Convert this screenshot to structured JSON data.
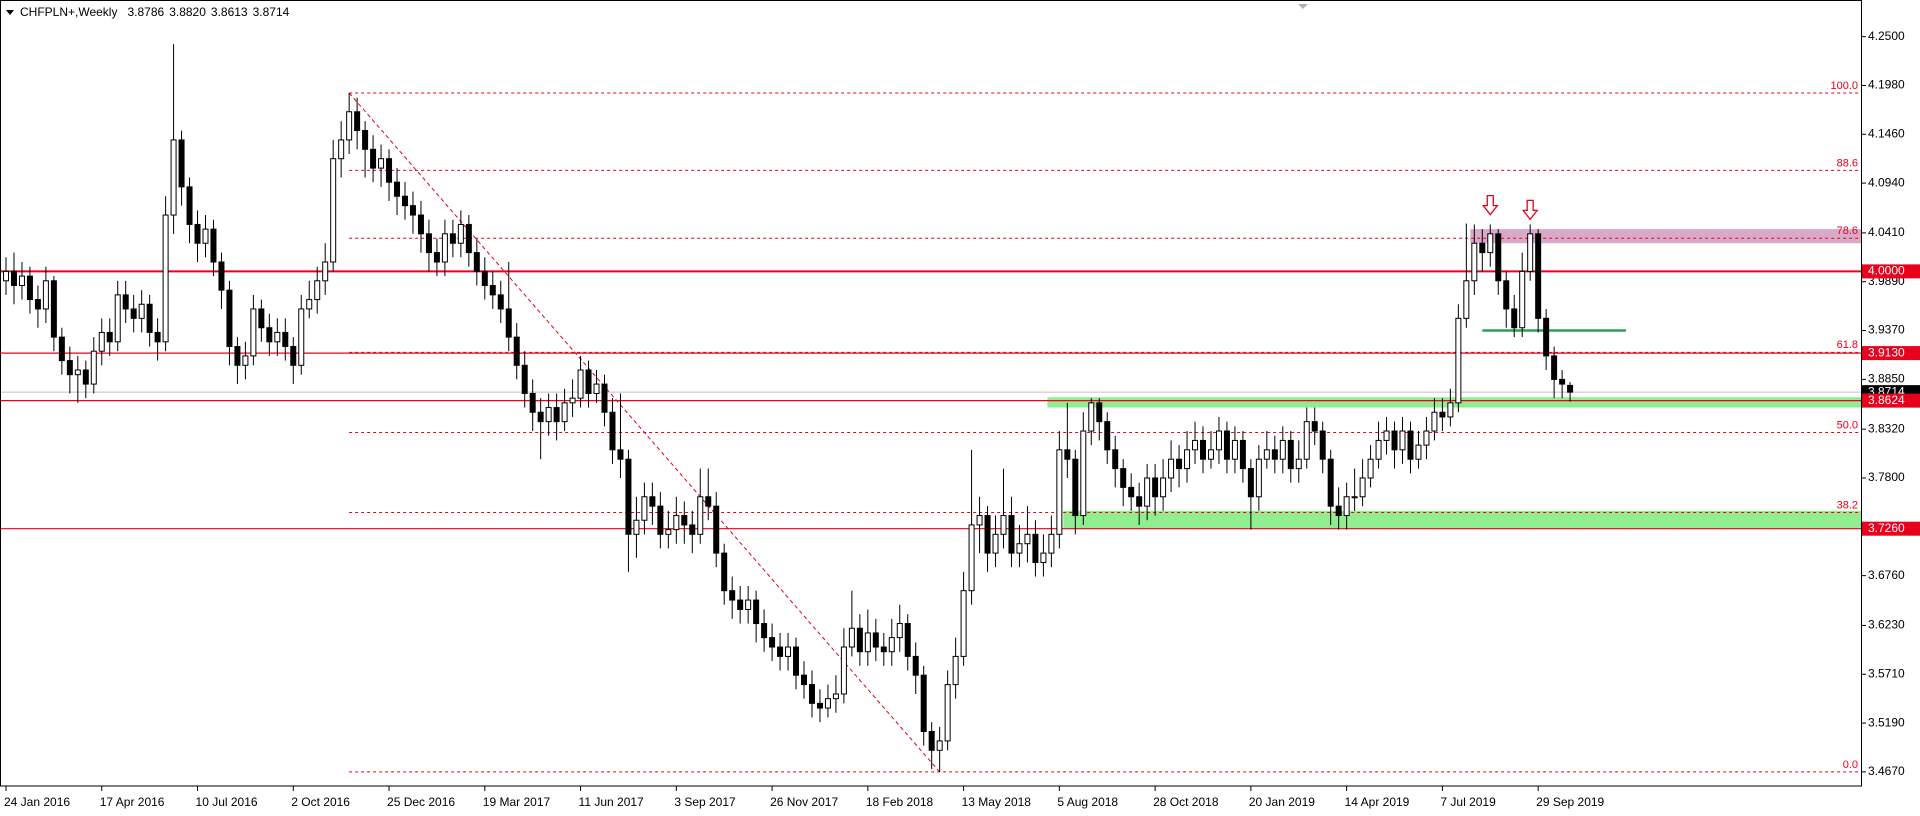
{
  "chart_data": {
    "type": "candlestick",
    "title": "CHFPLN+,Weekly",
    "quote_labels": [
      "3.8786",
      "3.8820",
      "3.8613",
      "3.8714"
    ],
    "categories": [
      "24 Jan 2016",
      null,
      null,
      null,
      null,
      null,
      null,
      null,
      null,
      null,
      null,
      null,
      "17 Apr 2016",
      null,
      null,
      null,
      null,
      null,
      null,
      null,
      null,
      null,
      null,
      null,
      "10 Jul 2016",
      null,
      null,
      null,
      null,
      null,
      null,
      null,
      null,
      null,
      null,
      null,
      "2 Oct 2016",
      null,
      null,
      null,
      null,
      null,
      null,
      null,
      null,
      null,
      null,
      null,
      "25 Dec 2016",
      null,
      null,
      null,
      null,
      null,
      null,
      null,
      null,
      null,
      null,
      null,
      "19 Mar 2017",
      null,
      null,
      null,
      null,
      null,
      null,
      null,
      null,
      null,
      null,
      null,
      "11 Jun 2017",
      null,
      null,
      null,
      null,
      null,
      null,
      null,
      null,
      null,
      null,
      null,
      "3 Sep 2017",
      null,
      null,
      null,
      null,
      null,
      null,
      null,
      null,
      null,
      null,
      null,
      "26 Nov 2017",
      null,
      null,
      null,
      null,
      null,
      null,
      null,
      null,
      null,
      null,
      null,
      "18 Feb 2018",
      null,
      null,
      null,
      null,
      null,
      null,
      null,
      null,
      null,
      null,
      null,
      "13 May 2018",
      null,
      null,
      null,
      null,
      null,
      null,
      null,
      null,
      null,
      null,
      null,
      "5 Aug 2018",
      null,
      null,
      null,
      null,
      null,
      null,
      null,
      null,
      null,
      null,
      null,
      "28 Oct 2018",
      null,
      null,
      null,
      null,
      null,
      null,
      null,
      null,
      null,
      null,
      null,
      "20 Jan 2019",
      null,
      null,
      null,
      null,
      null,
      null,
      null,
      null,
      null,
      null,
      null,
      "14 Apr 2019",
      null,
      null,
      null,
      null,
      null,
      null,
      null,
      null,
      null,
      null,
      null,
      "7 Jul 2019",
      null,
      null,
      null,
      null,
      null,
      null,
      null,
      null,
      null,
      null,
      null,
      "29 Sep 2019",
      null,
      null,
      null,
      null
    ],
    "open": [
      3.99,
      4.0,
      3.985,
      3.995,
      3.97,
      3.96,
      3.99,
      3.93,
      3.905,
      3.89,
      3.895,
      3.88,
      3.915,
      3.935,
      3.925,
      3.975,
      3.96,
      3.95,
      3.965,
      3.935,
      3.925,
      4.06,
      4.14,
      4.09,
      4.05,
      4.03,
      4.045,
      4.01,
      3.98,
      3.92,
      3.9,
      3.91,
      3.96,
      3.94,
      3.925,
      3.935,
      3.92,
      3.9,
      3.96,
      3.97,
      3.99,
      4.01,
      4.12,
      4.14,
      4.17,
      4.15,
      4.13,
      4.11,
      4.12,
      4.095,
      4.08,
      4.07,
      4.06,
      4.04,
      4.02,
      4.01,
      4.04,
      4.03,
      4.05,
      4.02,
      4.0,
      3.985,
      3.975,
      3.96,
      3.93,
      3.9,
      3.87,
      3.85,
      3.84,
      3.855,
      3.84,
      3.86,
      3.865,
      3.895,
      3.87,
      3.88,
      3.85,
      3.81,
      3.8,
      3.72,
      3.735,
      3.76,
      3.75,
      3.72,
      3.725,
      3.74,
      3.73,
      3.72,
      3.76,
      3.75,
      3.7,
      3.66,
      3.65,
      3.64,
      3.65,
      3.625,
      3.61,
      3.6,
      3.59,
      3.6,
      3.57,
      3.56,
      3.54,
      3.535,
      3.545,
      3.55,
      3.6,
      3.62,
      3.595,
      3.615,
      3.6,
      3.595,
      3.61,
      3.625,
      3.59,
      3.57,
      3.51,
      3.49,
      3.5,
      3.56,
      3.59,
      3.66,
      3.73,
      3.74,
      3.7,
      3.72,
      3.74,
      3.7,
      3.71,
      3.72,
      3.69,
      3.7,
      3.72,
      3.81,
      3.8,
      3.74,
      3.83,
      3.86,
      3.84,
      3.81,
      3.79,
      3.77,
      3.76,
      3.75,
      3.78,
      3.76,
      3.78,
      3.8,
      3.79,
      3.81,
      3.82,
      3.8,
      3.81,
      3.83,
      3.8,
      3.82,
      3.79,
      3.76,
      3.8,
      3.81,
      3.8,
      3.82,
      3.79,
      3.8,
      3.84,
      3.83,
      3.8,
      3.75,
      3.74,
      3.76,
      3.76,
      3.78,
      3.8,
      3.82,
      3.83,
      3.81,
      3.83,
      3.8,
      3.815,
      3.83,
      3.85,
      3.845,
      3.86,
      3.95,
      3.99,
      4.03,
      4.02,
      4.04,
      3.99,
      3.96,
      3.94,
      4.0,
      4.04,
      3.95,
      3.91,
      3.885,
      3.8786
    ],
    "high": [
      4.015,
      4.02,
      4.01,
      4.005,
      3.985,
      4.005,
      3.995,
      3.94,
      3.92,
      3.91,
      3.905,
      3.93,
      3.95,
      3.95,
      3.99,
      3.99,
      3.975,
      3.98,
      3.975,
      3.95,
      4.08,
      4.242,
      4.15,
      4.1,
      4.065,
      4.06,
      4.055,
      4.02,
      3.99,
      3.93,
      3.925,
      3.975,
      3.97,
      3.955,
      3.95,
      3.95,
      3.93,
      3.975,
      3.99,
      4.005,
      4.03,
      4.14,
      4.16,
      4.19,
      4.185,
      4.16,
      4.145,
      4.135,
      4.13,
      4.11,
      4.095,
      4.085,
      4.075,
      4.055,
      4.035,
      4.055,
      4.055,
      4.065,
      4.06,
      4.035,
      4.015,
      4.0,
      3.99,
      4.01,
      3.945,
      3.915,
      3.885,
      3.865,
      3.87,
      3.87,
      3.875,
      3.885,
      3.91,
      3.905,
      3.895,
      3.89,
      3.865,
      3.87,
      3.81,
      3.76,
      3.775,
      3.775,
      3.765,
      3.745,
      3.76,
      3.755,
      3.745,
      3.79,
      3.79,
      3.765,
      3.71,
      3.675,
      3.665,
      3.665,
      3.66,
      3.64,
      3.625,
      3.615,
      3.615,
      3.61,
      3.585,
      3.575,
      3.555,
      3.56,
      3.57,
      3.62,
      3.66,
      3.635,
      3.64,
      3.63,
      3.615,
      3.63,
      3.645,
      3.635,
      3.605,
      3.58,
      3.52,
      3.515,
      3.575,
      3.61,
      3.68,
      3.81,
      3.76,
      3.75,
      3.74,
      3.79,
      3.76,
      3.73,
      3.75,
      3.735,
      3.72,
      3.74,
      3.83,
      3.86,
      3.81,
      3.85,
      3.865,
      3.865,
      3.85,
      3.825,
      3.8,
      3.785,
      3.775,
      3.795,
      3.795,
      3.8,
      3.82,
      3.815,
      3.83,
      3.84,
      3.835,
      3.83,
      3.845,
      3.84,
      3.835,
      3.83,
      3.8,
      3.815,
      3.83,
      3.825,
      3.835,
      3.83,
      3.82,
      3.855,
      3.855,
      3.84,
      3.81,
      3.77,
      3.775,
      3.79,
      3.8,
      3.815,
      3.84,
      3.845,
      3.84,
      3.845,
      3.84,
      3.83,
      3.845,
      3.865,
      3.865,
      3.875,
      3.965,
      4.051,
      4.05,
      4.045,
      4.05,
      4.045,
      4.0,
      3.975,
      4.02,
      4.05,
      4.045,
      3.96,
      3.92,
      3.895,
      3.882
    ],
    "low": [
      3.975,
      3.965,
      3.97,
      3.955,
      3.94,
      3.945,
      3.915,
      3.89,
      3.87,
      3.86,
      3.865,
      3.87,
      3.9,
      3.91,
      3.915,
      3.945,
      3.935,
      3.935,
      3.92,
      3.905,
      3.915,
      4.04,
      4.07,
      4.03,
      4.01,
      4.015,
      3.995,
      3.96,
      3.9,
      3.88,
      3.885,
      3.9,
      3.925,
      3.91,
      3.91,
      3.905,
      3.88,
      3.89,
      3.95,
      3.955,
      3.975,
      4.0,
      4.1,
      4.125,
      4.13,
      4.1,
      4.095,
      4.09,
      4.075,
      4.06,
      4.055,
      4.04,
      4.02,
      4.0,
      3.995,
      3.995,
      4.015,
      4.015,
      4.005,
      3.985,
      3.97,
      3.96,
      3.945,
      3.915,
      3.885,
      3.855,
      3.83,
      3.8,
      3.825,
      3.82,
      3.83,
      3.845,
      3.855,
      3.855,
      3.86,
      3.835,
      3.795,
      3.78,
      3.68,
      3.695,
      3.72,
      3.73,
      3.705,
      3.705,
      3.71,
      3.71,
      3.7,
      3.71,
      3.735,
      3.685,
      3.645,
      3.63,
      3.625,
      3.625,
      3.605,
      3.595,
      3.585,
      3.575,
      3.575,
      3.555,
      3.545,
      3.525,
      3.52,
      3.525,
      3.53,
      3.54,
      3.59,
      3.58,
      3.58,
      3.585,
      3.58,
      3.58,
      3.595,
      3.575,
      3.55,
      3.495,
      3.47,
      3.467,
      3.49,
      3.545,
      3.58,
      3.645,
      3.7,
      3.68,
      3.685,
      3.705,
      3.685,
      3.685,
      3.69,
      3.675,
      3.675,
      3.685,
      3.705,
      3.78,
      3.72,
      3.73,
      3.815,
      3.82,
      3.795,
      3.77,
      3.75,
      3.745,
      3.73,
      3.735,
      3.74,
      3.745,
      3.765,
      3.77,
      3.775,
      3.795,
      3.785,
      3.79,
      3.795,
      3.785,
      3.785,
      3.775,
      3.725,
      3.745,
      3.79,
      3.785,
      3.785,
      3.775,
      3.775,
      3.79,
      3.815,
      3.785,
      3.73,
      3.725,
      3.725,
      3.745,
      3.75,
      3.77,
      3.79,
      3.805,
      3.79,
      3.795,
      3.785,
      3.79,
      3.8,
      3.82,
      3.83,
      3.835,
      3.85,
      3.94,
      3.975,
      4.0,
      4.005,
      3.975,
      3.94,
      3.93,
      3.93,
      3.99,
      3.935,
      3.895,
      3.865,
      3.865,
      3.8613
    ],
    "close": [
      4.0,
      3.985,
      3.995,
      3.97,
      3.96,
      3.99,
      3.93,
      3.905,
      3.89,
      3.895,
      3.88,
      3.915,
      3.935,
      3.925,
      3.975,
      3.96,
      3.95,
      3.965,
      3.935,
      3.925,
      4.06,
      4.14,
      4.09,
      4.05,
      4.03,
      4.045,
      4.01,
      3.98,
      3.92,
      3.9,
      3.91,
      3.96,
      3.94,
      3.925,
      3.935,
      3.92,
      3.9,
      3.96,
      3.97,
      3.99,
      4.01,
      4.12,
      4.14,
      4.17,
      4.15,
      4.13,
      4.11,
      4.12,
      4.095,
      4.08,
      4.07,
      4.06,
      4.04,
      4.02,
      4.01,
      4.04,
      4.03,
      4.05,
      4.02,
      4.0,
      3.985,
      3.975,
      3.96,
      3.93,
      3.9,
      3.87,
      3.85,
      3.84,
      3.855,
      3.84,
      3.86,
      3.865,
      3.895,
      3.87,
      3.88,
      3.85,
      3.81,
      3.8,
      3.72,
      3.735,
      3.76,
      3.75,
      3.72,
      3.725,
      3.74,
      3.73,
      3.72,
      3.76,
      3.75,
      3.7,
      3.66,
      3.65,
      3.64,
      3.65,
      3.625,
      3.61,
      3.6,
      3.59,
      3.6,
      3.57,
      3.56,
      3.54,
      3.535,
      3.545,
      3.55,
      3.6,
      3.62,
      3.595,
      3.615,
      3.6,
      3.595,
      3.61,
      3.625,
      3.59,
      3.57,
      3.51,
      3.49,
      3.5,
      3.56,
      3.59,
      3.66,
      3.73,
      3.74,
      3.7,
      3.72,
      3.74,
      3.7,
      3.71,
      3.72,
      3.69,
      3.7,
      3.72,
      3.81,
      3.8,
      3.74,
      3.83,
      3.86,
      3.84,
      3.81,
      3.79,
      3.77,
      3.76,
      3.75,
      3.78,
      3.76,
      3.78,
      3.8,
      3.79,
      3.81,
      3.82,
      3.8,
      3.81,
      3.83,
      3.8,
      3.82,
      3.79,
      3.76,
      3.8,
      3.81,
      3.8,
      3.82,
      3.79,
      3.8,
      3.84,
      3.83,
      3.8,
      3.75,
      3.74,
      3.76,
      3.76,
      3.78,
      3.8,
      3.82,
      3.83,
      3.81,
      3.83,
      3.8,
      3.815,
      3.83,
      3.85,
      3.845,
      3.86,
      3.95,
      3.99,
      4.03,
      4.02,
      4.04,
      3.99,
      3.96,
      3.94,
      4.0,
      4.04,
      3.95,
      3.91,
      3.885,
      3.88,
      3.8714
    ],
    "up_color": "#ffffff",
    "down_color": "#000000",
    "wick_color": "#000000",
    "ylim": [
      3.452,
      4.289
    ],
    "yticks": [
      {
        "value": 4.25,
        "label": "4.2500"
      },
      {
        "value": 4.198,
        "label": "4.1980"
      },
      {
        "value": 4.146,
        "label": "4.1460"
      },
      {
        "value": 4.094,
        "label": "4.0940"
      },
      {
        "value": 4.041,
        "label": "4.0410"
      },
      {
        "value": 3.989,
        "label": "3.9890"
      },
      {
        "value": 3.937,
        "label": "3.9370"
      },
      {
        "value": 3.885,
        "label": "3.8850"
      },
      {
        "value": 3.832,
        "label": "3.8320"
      },
      {
        "value": 3.78,
        "label": "3.7800"
      },
      {
        "value": 3.676,
        "label": "3.6760"
      },
      {
        "value": 3.623,
        "label": "3.6230"
      },
      {
        "value": 3.571,
        "label": "3.5710"
      },
      {
        "value": 3.519,
        "label": "3.5190"
      },
      {
        "value": 3.467,
        "label": "3.4670"
      }
    ],
    "grid": false,
    "levels": [
      {
        "value": 4.0,
        "label": "4.0000",
        "color": "#e8001c"
      },
      {
        "value": 3.913,
        "label": "3.9130",
        "color": "#e8001c"
      },
      {
        "value": 3.8624,
        "label": "3.8624",
        "color": "#e8001c"
      },
      {
        "value": 3.726,
        "label": "3.7260",
        "color": "#e8001c"
      }
    ],
    "price_line_color": "#c0c0c0",
    "fibonacci": {
      "from": 4.19,
      "to": 3.467,
      "color": "#e8001c",
      "levels": [
        {
          "value": 0,
          "label": "0.0"
        },
        {
          "value": 38.2,
          "label": "38.2"
        },
        {
          "value": 50,
          "label": "50.0"
        },
        {
          "value": 61.8,
          "label": "61.8"
        },
        {
          "value": 78.6,
          "label": "78.6"
        },
        {
          "value": 88.6,
          "label": "88.6"
        },
        {
          "value": 100,
          "label": "100.0"
        }
      ]
    },
    "zones": [
      {
        "from": 4.045,
        "to": 4.03,
        "start": 184,
        "color": "#d9a9c9"
      },
      {
        "from": 3.866,
        "to": 3.855,
        "start": 131,
        "color": "#90ee90"
      },
      {
        "from": 3.745,
        "to": 3.726,
        "start": 133,
        "color": "#90ee90"
      }
    ],
    "trend_lines": [
      {
        "price": 3.937,
        "start": 185,
        "end": 203,
        "color": "#2e9d5a"
      }
    ],
    "arrows": [
      {
        "index": 186,
        "price": 4.07,
        "color": "#e8001c"
      },
      {
        "index": 191,
        "price": 4.065,
        "color": "#e8001c"
      }
    ]
  }
}
